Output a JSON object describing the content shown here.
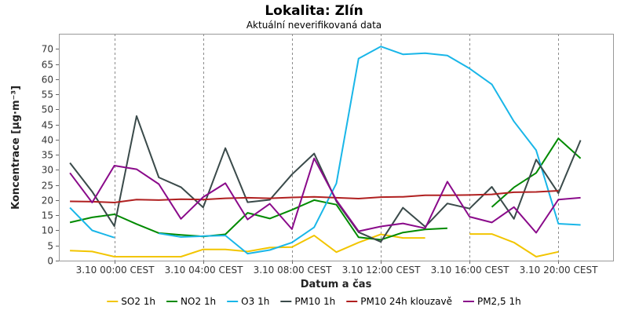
{
  "chart_data": {
    "type": "line",
    "title": "Lokalita: Zlín",
    "subtitle": "Aktuální neverifikovaná data",
    "xlabel": "Datum a čas",
    "ylabel": "Koncentrace [µg·m⁻³]",
    "ylim": [
      0,
      75
    ],
    "yticks": [
      0,
      5,
      10,
      15,
      20,
      25,
      30,
      35,
      40,
      45,
      50,
      55,
      60,
      65,
      70
    ],
    "xlim": [
      -2.5,
      22.5
    ],
    "xticks": [
      {
        "x": 0,
        "label": "3.10 00:00 CEST"
      },
      {
        "x": 4,
        "label": "3.10 04:00 CEST"
      },
      {
        "x": 8,
        "label": "3.10 08:00 CEST"
      },
      {
        "x": 12,
        "label": "3.10 12:00 CEST"
      },
      {
        "x": 16,
        "label": "3.10 16:00 CEST"
      },
      {
        "x": 20,
        "label": "3.10 20:00 CEST"
      }
    ],
    "grid": true,
    "legend_position": "bottom",
    "x": [
      -2,
      -1,
      0,
      1,
      2,
      3,
      4,
      5,
      6,
      7,
      8,
      9,
      10,
      11,
      12,
      13,
      14,
      15,
      16,
      17,
      18,
      19,
      20,
      21,
      22
    ],
    "series": [
      {
        "name": "SO2 1h",
        "color": "#f2c500",
        "values": [
          3.3,
          3.0,
          1.3,
          1.3,
          1.3,
          1.3,
          3.7,
          3.7,
          3.0,
          4.3,
          4.5,
          8.3,
          2.8,
          6.0,
          8.7,
          7.5,
          7.5,
          null,
          8.8,
          8.8,
          6.0,
          1.3,
          2.9,
          null,
          null
        ]
      },
      {
        "name": "NO2 1h",
        "color": "#008a00",
        "values": [
          12.6,
          14.3,
          15.3,
          12.1,
          9.1,
          8.5,
          8.0,
          8.7,
          15.8,
          13.9,
          16.8,
          20.0,
          18.5,
          7.7,
          6.9,
          9.3,
          10.3,
          10.7,
          null,
          17.7,
          24.2,
          29.0,
          40.4,
          33.8,
          null
        ]
      },
      {
        "name": "O3 1h",
        "color": "#19b6e8",
        "values": [
          17.5,
          10.0,
          7.6,
          null,
          9.0,
          7.8,
          8.1,
          8.3,
          2.3,
          3.5,
          6.0,
          11.0,
          25.5,
          66.8,
          70.8,
          68.2,
          68.6,
          67.8,
          63.5,
          58.3,
          46.0,
          36.5,
          12.2,
          11.8,
          null
        ]
      },
      {
        "name": "PM10 1h",
        "color": "#3a4a4a",
        "values": [
          32.3,
          22.8,
          11.4,
          47.8,
          27.5,
          24.3,
          17.6,
          37.2,
          19.3,
          20.1,
          28.5,
          35.4,
          19.6,
          9.4,
          6.2,
          17.5,
          11.2,
          18.9,
          17.2,
          24.4,
          13.8,
          33.4,
          22.3,
          39.8,
          null
        ]
      },
      {
        "name": "PM10 24h klouzavě",
        "color": "#b02020",
        "values": [
          19.6,
          19.5,
          19.2,
          20.2,
          20.0,
          20.3,
          20.2,
          20.6,
          20.8,
          20.6,
          20.9,
          21.1,
          20.8,
          20.5,
          21.0,
          21.1,
          21.6,
          21.6,
          21.7,
          21.9,
          22.6,
          22.7,
          23.1,
          null,
          null
        ]
      },
      {
        "name": "PM2,5 1h",
        "color": "#8a0a8a",
        "values": [
          29.0,
          19.2,
          31.4,
          30.2,
          25.3,
          13.8,
          21.0,
          25.6,
          13.6,
          18.8,
          10.4,
          33.8,
          20.0,
          9.7,
          11.3,
          12.3,
          10.7,
          26.1,
          14.5,
          12.6,
          17.7,
          9.2,
          20.2,
          20.8,
          null
        ]
      }
    ]
  }
}
